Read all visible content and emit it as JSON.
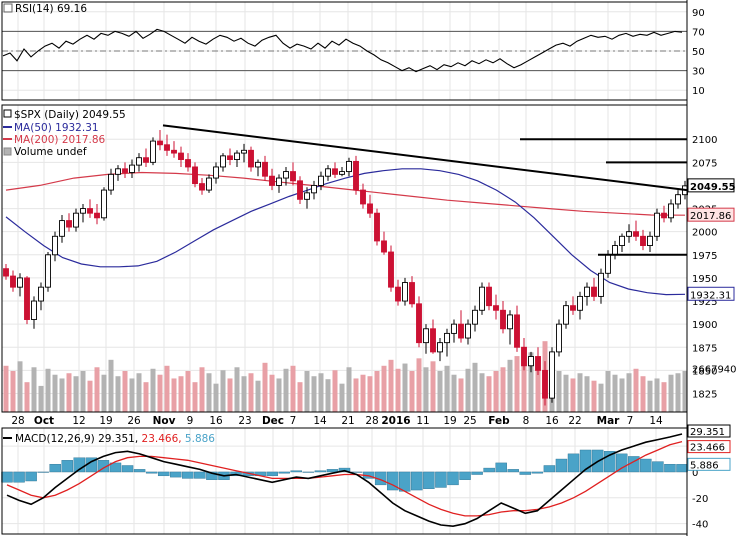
{
  "chart_data": {
    "type": "stock-chart",
    "symbol": "$SPX",
    "rsi": {
      "label": "RSI(14) 69.16",
      "value_label": "69.16",
      "ticks": [
        10,
        30,
        50,
        70,
        90
      ],
      "ylim": [
        0,
        100
      ],
      "overbought": 70,
      "oversold": 30,
      "x": [
        3,
        10,
        17,
        24,
        31,
        38,
        45,
        52,
        59,
        66,
        73,
        80,
        87,
        94,
        101,
        108,
        115,
        122,
        129,
        136,
        143,
        150,
        157,
        164,
        171,
        178,
        185,
        192,
        199,
        206,
        213,
        220,
        227,
        234,
        241,
        248,
        255,
        262,
        269,
        276,
        283,
        290,
        297,
        304,
        311,
        318,
        325,
        332,
        339,
        346,
        353,
        360,
        367,
        374,
        381,
        388,
        395,
        402,
        409,
        416,
        423,
        430,
        437,
        444,
        451,
        458,
        465,
        472,
        479,
        486,
        493,
        500,
        507,
        514,
        521,
        528,
        535,
        542,
        549,
        556,
        563,
        570,
        577,
        584,
        591,
        598,
        605,
        612,
        619,
        626,
        633,
        640,
        647,
        654,
        661,
        668,
        675,
        682
      ],
      "values": [
        45,
        48,
        40,
        52,
        44,
        50,
        55,
        58,
        53,
        60,
        57,
        62,
        66,
        62,
        68,
        66,
        70,
        68,
        65,
        70,
        63,
        67,
        72,
        70,
        66,
        62,
        58,
        64,
        60,
        57,
        62,
        66,
        64,
        60,
        63,
        58,
        55,
        61,
        64,
        66,
        58,
        53,
        57,
        55,
        52,
        58,
        53,
        60,
        56,
        62,
        58,
        55,
        50,
        46,
        41,
        38,
        34,
        30,
        33,
        29,
        32,
        35,
        31,
        36,
        34,
        38,
        35,
        40,
        37,
        41,
        38,
        42,
        37,
        33,
        36,
        40,
        44,
        48,
        52,
        56,
        58,
        55,
        60,
        63,
        66,
        64,
        65,
        62,
        66,
        68,
        65,
        67,
        66,
        69,
        66,
        68,
        70,
        69.16
      ]
    },
    "price": {
      "title": "$SPX (Daily) 2049.55",
      "last_label": "2049.55",
      "ma50_legend": "MA(50) 1932.31",
      "ma50_value_label": "1932.31",
      "ma200_legend": "MA(200) 2017.86",
      "ma200_value_label": "2017.86",
      "volume_legend": "Volume undef",
      "volume_value_label": "2667940",
      "yticks": [
        1825,
        1850,
        1875,
        1900,
        1925,
        1950,
        1975,
        2000,
        2025,
        2050,
        2075,
        2100
      ],
      "ylim": [
        1805,
        2137
      ],
      "candles": [
        [
          1960,
          1965,
          1948,
          1952
        ],
        [
          1952,
          1958,
          1935,
          1940
        ],
        [
          1940,
          1955,
          1930,
          1950
        ],
        [
          1950,
          1952,
          1900,
          1905
        ],
        [
          1905,
          1930,
          1895,
          1925
        ],
        [
          1925,
          1945,
          1915,
          1940
        ],
        [
          1940,
          1978,
          1935,
          1975
        ],
        [
          1975,
          2000,
          1968,
          1995
        ],
        [
          1995,
          2018,
          1988,
          2012
        ],
        [
          2012,
          2020,
          2000,
          2005
        ],
        [
          2005,
          2025,
          2000,
          2020
        ],
        [
          2020,
          2030,
          2010,
          2025
        ],
        [
          2025,
          2035,
          2015,
          2020
        ],
        [
          2020,
          2030,
          2008,
          2015
        ],
        [
          2015,
          2048,
          2012,
          2045
        ],
        [
          2045,
          2068,
          2040,
          2062
        ],
        [
          2062,
          2072,
          2055,
          2068
        ],
        [
          2068,
          2075,
          2058,
          2064
        ],
        [
          2064,
          2078,
          2058,
          2072
        ],
        [
          2072,
          2085,
          2065,
          2080
        ],
        [
          2080,
          2090,
          2070,
          2075
        ],
        [
          2075,
          2102,
          2072,
          2098
        ],
        [
          2098,
          2110,
          2088,
          2094
        ],
        [
          2094,
          2105,
          2082,
          2088
        ],
        [
          2088,
          2098,
          2080,
          2085
        ],
        [
          2085,
          2092,
          2070,
          2078
        ],
        [
          2078,
          2085,
          2065,
          2070
        ],
        [
          2070,
          2075,
          2048,
          2052
        ],
        [
          2052,
          2058,
          2040,
          2045
        ],
        [
          2045,
          2062,
          2042,
          2058
        ],
        [
          2058,
          2075,
          2052,
          2070
        ],
        [
          2070,
          2085,
          2065,
          2082
        ],
        [
          2082,
          2090,
          2072,
          2078
        ],
        [
          2078,
          2088,
          2070,
          2085
        ],
        [
          2085,
          2095,
          2075,
          2088
        ],
        [
          2088,
          2092,
          2065,
          2070
        ],
        [
          2070,
          2078,
          2060,
          2075
        ],
        [
          2075,
          2082,
          2055,
          2060
        ],
        [
          2060,
          2068,
          2045,
          2050
        ],
        [
          2050,
          2062,
          2042,
          2058
        ],
        [
          2058,
          2070,
          2050,
          2065
        ],
        [
          2065,
          2075,
          2050,
          2055
        ],
        [
          2055,
          2060,
          2030,
          2035
        ],
        [
          2035,
          2048,
          2025,
          2042
        ],
        [
          2042,
          2055,
          2035,
          2050
        ],
        [
          2050,
          2065,
          2045,
          2060
        ],
        [
          2060,
          2072,
          2055,
          2068
        ],
        [
          2068,
          2075,
          2058,
          2062
        ],
        [
          2062,
          2070,
          2060,
          2065
        ],
        [
          2065,
          2080,
          2060,
          2076
        ],
        [
          2076,
          2082,
          2040,
          2045
        ],
        [
          2045,
          2052,
          2025,
          2030
        ],
        [
          2030,
          2040,
          2015,
          2020
        ],
        [
          2020,
          2025,
          1985,
          1990
        ],
        [
          1990,
          2000,
          1975,
          1978
        ],
        [
          1978,
          1985,
          1935,
          1940
        ],
        [
          1940,
          1948,
          1920,
          1925
        ],
        [
          1925,
          1950,
          1920,
          1945
        ],
        [
          1945,
          1952,
          1918,
          1922
        ],
        [
          1922,
          1930,
          1875,
          1880
        ],
        [
          1880,
          1900,
          1868,
          1895
        ],
        [
          1895,
          1905,
          1868,
          1870
        ],
        [
          1870,
          1885,
          1860,
          1880
        ],
        [
          1880,
          1895,
          1865,
          1890
        ],
        [
          1890,
          1905,
          1880,
          1900
        ],
        [
          1900,
          1915,
          1880,
          1885
        ],
        [
          1885,
          1905,
          1878,
          1900
        ],
        [
          1900,
          1920,
          1892,
          1915
        ],
        [
          1915,
          1945,
          1910,
          1940
        ],
        [
          1940,
          1945,
          1915,
          1920
        ],
        [
          1920,
          1932,
          1905,
          1915
        ],
        [
          1915,
          1925,
          1890,
          1895
        ],
        [
          1895,
          1915,
          1878,
          1910
        ],
        [
          1910,
          1920,
          1870,
          1875
        ],
        [
          1875,
          1885,
          1850,
          1855
        ],
        [
          1855,
          1870,
          1848,
          1865
        ],
        [
          1865,
          1875,
          1845,
          1850
        ],
        [
          1850,
          1860,
          1812,
          1820
        ],
        [
          1820,
          1875,
          1815,
          1870
        ],
        [
          1870,
          1905,
          1865,
          1900
        ],
        [
          1900,
          1925,
          1895,
          1920
        ],
        [
          1920,
          1930,
          1910,
          1915
        ],
        [
          1915,
          1935,
          1905,
          1930
        ],
        [
          1930,
          1945,
          1920,
          1940
        ],
        [
          1940,
          1950,
          1925,
          1930
        ],
        [
          1930,
          1960,
          1922,
          1955
        ],
        [
          1955,
          1980,
          1950,
          1975
        ],
        [
          1975,
          1990,
          1970,
          1985
        ],
        [
          1985,
          1998,
          1978,
          1995
        ],
        [
          1995,
          2008,
          1988,
          2000
        ],
        [
          2000,
          2012,
          1990,
          1995
        ],
        [
          1995,
          2002,
          1980,
          1985
        ],
        [
          1985,
          2000,
          1978,
          1995
        ],
        [
          1995,
          2025,
          1990,
          2020
        ],
        [
          2020,
          2028,
          2010,
          2015
        ],
        [
          2015,
          2035,
          2010,
          2030
        ],
        [
          2030,
          2045,
          2025,
          2040
        ],
        [
          2040,
          2055,
          2035,
          2049.55
        ]
      ],
      "ma50": [
        2016,
        2000,
        1985,
        1972,
        1965,
        1962,
        1962,
        1963,
        1968,
        1978,
        1990,
        2002,
        2012,
        2022,
        2030,
        2038,
        2045,
        2052,
        2058,
        2063,
        2066,
        2068,
        2068,
        2066,
        2062,
        2055,
        2045,
        2032,
        2015,
        1995,
        1975,
        1958,
        1945,
        1938,
        1934,
        1932,
        1932.31
      ],
      "ma200": [
        2045,
        2050,
        2058,
        2062,
        2064,
        2063,
        2061,
        2058,
        2054,
        2050,
        2046,
        2042,
        2038,
        2034,
        2031,
        2028,
        2025,
        2022,
        2020,
        2018,
        2017.86
      ],
      "volume": [
        62,
        55,
        68,
        40,
        60,
        35,
        58,
        50,
        45,
        52,
        48,
        55,
        42,
        60,
        50,
        70,
        48,
        55,
        45,
        52,
        40,
        58,
        50,
        62,
        45,
        48,
        55,
        40,
        60,
        52,
        38,
        56,
        45,
        60,
        48,
        52,
        42,
        66,
        50,
        45,
        58,
        62,
        40,
        55,
        48,
        52,
        44,
        56,
        38,
        60,
        45,
        50,
        48,
        55,
        62,
        70,
        58,
        65,
        55,
        72,
        60,
        68,
        55,
        62,
        50,
        45,
        58,
        66,
        52,
        48,
        55,
        60,
        70,
        75,
        68,
        80,
        72,
        95,
        60,
        55,
        50,
        45,
        52,
        48,
        42,
        38,
        55,
        50,
        45,
        52,
        58,
        48,
        42,
        45,
        40,
        50,
        52,
        55
      ],
      "volume_ylim": [
        0,
        110
      ]
    },
    "macd": {
      "label": "MACD(12,26,9) 29.351, 23.466, 5.886",
      "legend_parts": [
        "MACD(12,26,9) 29.351,",
        "23.466,",
        "5.886"
      ],
      "macd_value_label": "29.351",
      "signal_value_label": "23.466",
      "hist_value_label": "5.886",
      "yticks": [
        -40,
        -20,
        0,
        20
      ],
      "ylim": [
        -48,
        34
      ],
      "macd": [
        -18,
        -22,
        -25,
        -20,
        -12,
        -5,
        2,
        8,
        12,
        15,
        16,
        14,
        11,
        8,
        6,
        4,
        2,
        -1,
        -3,
        -2,
        -4,
        -6,
        -8,
        -6,
        -4,
        -5,
        -3,
        -1,
        1,
        -2,
        -8,
        -16,
        -24,
        -30,
        -34,
        -38,
        -41,
        -42,
        -40,
        -36,
        -30,
        -24,
        -28,
        -32,
        -30,
        -22,
        -14,
        -6,
        2,
        8,
        13,
        17,
        20,
        23,
        25,
        27,
        29.351
      ],
      "signal": [
        -10,
        -14,
        -18,
        -20,
        -18,
        -14,
        -9,
        -3,
        3,
        8,
        11,
        12,
        12,
        11,
        10,
        9,
        7,
        5,
        3,
        1,
        -1,
        -3,
        -5,
        -5,
        -5,
        -5,
        -4,
        -3,
        -2,
        -2,
        -3,
        -6,
        -10,
        -15,
        -20,
        -25,
        -29,
        -32,
        -34,
        -34,
        -33,
        -31,
        -30,
        -30,
        -29,
        -27,
        -24,
        -20,
        -15,
        -9,
        -3,
        3,
        8,
        13,
        17,
        21,
        23.466
      ]
    },
    "x_labels": [
      {
        "label": "28",
        "pos": 18
      },
      {
        "label": "Oct",
        "pos": 44,
        "bold": true
      },
      {
        "label": "12",
        "pos": 79
      },
      {
        "label": "19",
        "pos": 106
      },
      {
        "label": "26",
        "pos": 134
      },
      {
        "label": "Nov",
        "pos": 164,
        "bold": true
      },
      {
        "label": "9",
        "pos": 190
      },
      {
        "label": "16",
        "pos": 216
      },
      {
        "label": "23",
        "pos": 245
      },
      {
        "label": "Dec",
        "pos": 273,
        "bold": true
      },
      {
        "label": "7",
        "pos": 293
      },
      {
        "label": "14",
        "pos": 320
      },
      {
        "label": "21",
        "pos": 348
      },
      {
        "label": "28",
        "pos": 372
      },
      {
        "label": "2016",
        "pos": 396,
        "bold": true
      },
      {
        "label": "11",
        "pos": 423
      },
      {
        "label": "19",
        "pos": 450
      },
      {
        "label": "25",
        "pos": 470
      },
      {
        "label": "Feb",
        "pos": 499,
        "bold": true
      },
      {
        "label": "8",
        "pos": 526
      },
      {
        "label": "16",
        "pos": 552
      },
      {
        "label": "22",
        "pos": 575
      },
      {
        "label": "Mar",
        "pos": 608,
        "bold": true
      },
      {
        "label": "7",
        "pos": 630
      },
      {
        "label": "14",
        "pos": 656
      }
    ],
    "colors": {
      "up": "#ffffff",
      "down": "#cc1133",
      "candle_outline": "#000000",
      "ma50": "#2b2b9c",
      "ma200": "#d43a4a",
      "rsi": "#000000",
      "macd": "#000000",
      "signal": "#e02020",
      "histogram": "#4aa3c8",
      "volume_up": "#b3b3b3",
      "volume_down": "#e8a0a6",
      "grid": "#e6e6e6",
      "trendline": "#000000",
      "ma200_label_bg": "#ffe4e4"
    }
  }
}
